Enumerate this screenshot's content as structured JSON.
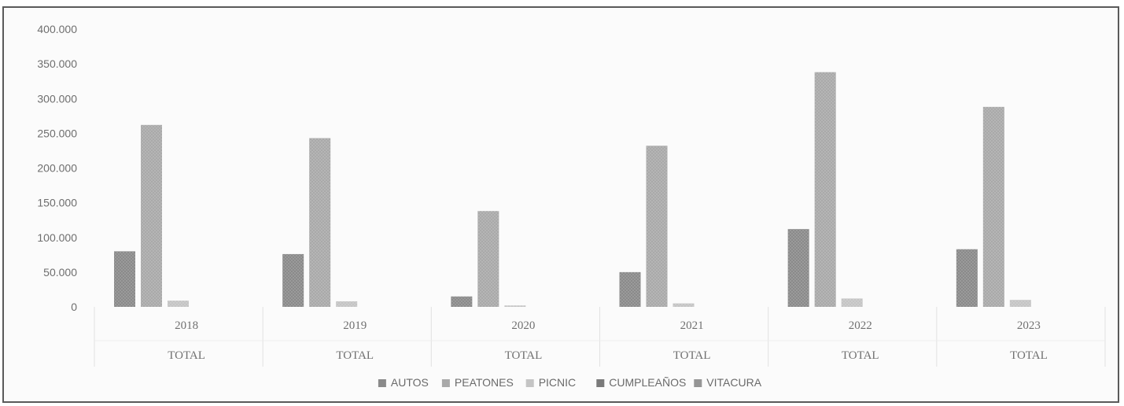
{
  "chart_data": {
    "type": "bar",
    "title": "",
    "xlabel": "",
    "ylabel": "",
    "groups": [
      {
        "year": "2018",
        "label": "TOTAL"
      },
      {
        "year": "2019",
        "label": "TOTAL"
      },
      {
        "year": "2020",
        "label": "TOTAL"
      },
      {
        "year": "2021",
        "label": "TOTAL"
      },
      {
        "year": "2022",
        "label": "TOTAL"
      },
      {
        "year": "2023",
        "label": "TOTAL"
      }
    ],
    "series": [
      {
        "name": "AUTOS",
        "values": [
          80000,
          76000,
          15000,
          50000,
          112000,
          83000
        ],
        "color": "#8a8a8a"
      },
      {
        "name": "PEATONES",
        "values": [
          262000,
          243000,
          138000,
          232000,
          338000,
          288000
        ],
        "color": "#a9a9a9"
      },
      {
        "name": "PICNIC",
        "values": [
          9000,
          8000,
          2000,
          5000,
          12000,
          10000
        ],
        "color": "#c4c4c4"
      },
      {
        "name": "CUMPLEAÑOS",
        "values": [
          0,
          0,
          0,
          0,
          0,
          0
        ],
        "color": "#7a7a7a"
      },
      {
        "name": "VITACURA",
        "values": [
          0,
          0,
          0,
          0,
          0,
          0
        ],
        "color": "#959595"
      }
    ],
    "yticks": [
      "400.000",
      "350.000",
      "300.000",
      "250.000",
      "200.000",
      "150.000",
      "100.000",
      "50.000",
      "0"
    ],
    "ylim": [
      0,
      400000
    ],
    "grid": false,
    "legend_position": "bottom"
  }
}
